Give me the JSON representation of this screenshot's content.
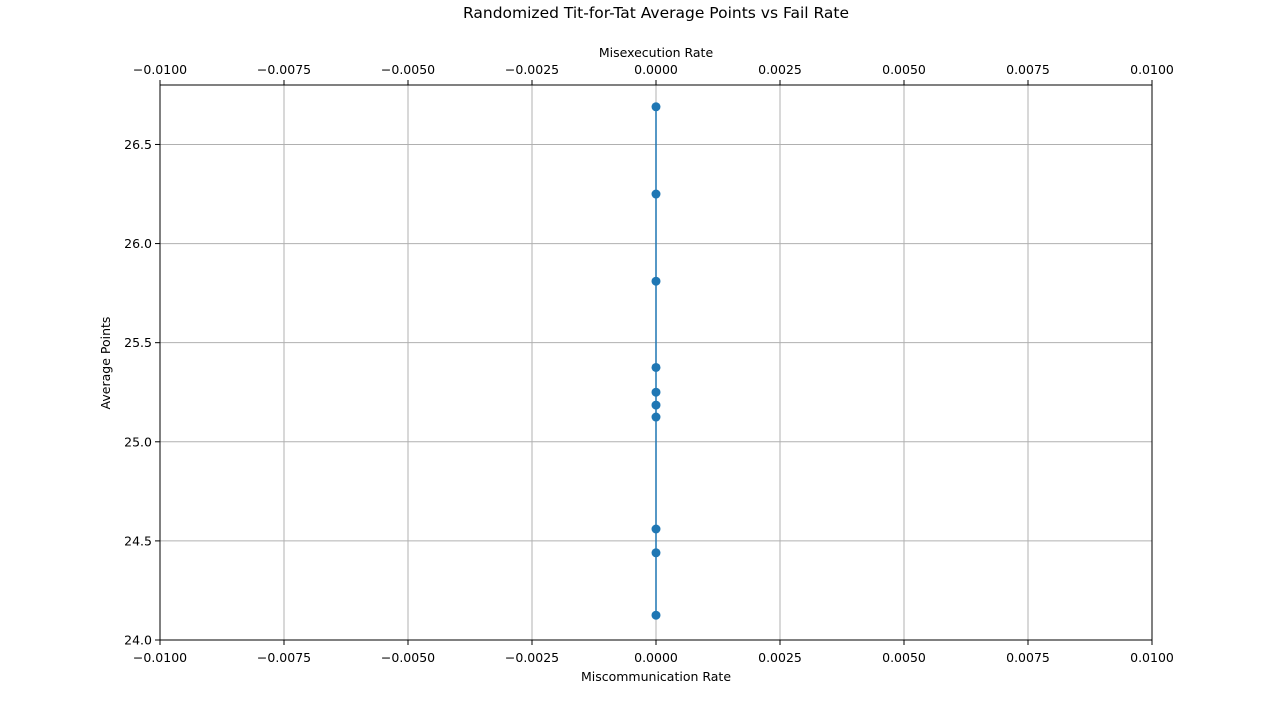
{
  "chart_data": {
    "type": "line",
    "title": "Randomized Tit-for-Tat Average Points vs Fail Rate",
    "xlabel": "Miscommunication Rate",
    "x2label": "Misexecution Rate",
    "ylabel": "Average Points",
    "xlim": [
      -0.01,
      0.01
    ],
    "ylim": [
      24.0,
      26.8
    ],
    "xticks": [
      -0.01,
      -0.0075,
      -0.005,
      -0.0025,
      0.0,
      0.0025,
      0.005,
      0.0075,
      0.01
    ],
    "xtick_labels": [
      "−0.0100",
      "−0.0075",
      "−0.0050",
      "−0.0025",
      "0.0000",
      "0.0025",
      "0.0050",
      "0.0075",
      "0.0100"
    ],
    "x2ticks": [
      -0.01,
      -0.0075,
      -0.005,
      -0.0025,
      0.0,
      0.0025,
      0.005,
      0.0075,
      0.01
    ],
    "x2tick_labels": [
      "−0.0100",
      "−0.0075",
      "−0.0050",
      "−0.0025",
      "0.0000",
      "0.0025",
      "0.0050",
      "0.0075",
      "0.0100"
    ],
    "yticks": [
      24.0,
      24.5,
      25.0,
      25.5,
      26.0,
      26.5
    ],
    "ytick_labels": [
      "24.0",
      "24.5",
      "25.0",
      "25.5",
      "26.0",
      "26.5"
    ],
    "grid": true,
    "series": [
      {
        "x": [
          0,
          0,
          0,
          0,
          0,
          0,
          0,
          0,
          0,
          0
        ],
        "y": [
          26.69,
          26.25,
          25.81,
          25.375,
          25.25,
          25.185,
          25.125,
          24.56,
          24.44,
          24.125
        ]
      }
    ],
    "colors": {
      "series": "#1f77b4",
      "grid": "#b0b0b0",
      "axes": "#000000"
    }
  }
}
